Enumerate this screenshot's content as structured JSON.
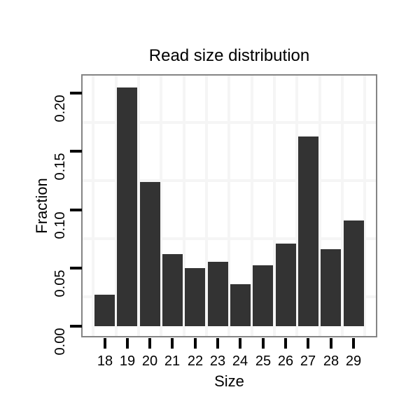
{
  "chart_data": {
    "type": "bar",
    "title": "Read size distribution",
    "xlabel": "Size",
    "ylabel": "Fraction",
    "categories": [
      "18",
      "19",
      "20",
      "21",
      "22",
      "23",
      "24",
      "25",
      "26",
      "27",
      "28",
      "29"
    ],
    "values": [
      0.027,
      0.205,
      0.124,
      0.062,
      0.05,
      0.055,
      0.036,
      0.052,
      0.071,
      0.163,
      0.066,
      0.091
    ],
    "y_tick_labels": [
      "0.00",
      "0.05",
      "0.10",
      "0.15",
      "0.20"
    ],
    "y_tick_values": [
      0.0,
      0.05,
      0.1,
      0.15,
      0.2
    ],
    "ylim": [
      0,
      0.215
    ],
    "grid": "minor gridlines between y ticks and between category slots",
    "y_minor_grid_values": [
      0.025,
      0.075,
      0.125,
      0.175
    ],
    "legend": "none",
    "colors": {
      "bar": "#333333",
      "gridline": "#f5f5f5",
      "panel_border": "#848484",
      "tick": "#000000",
      "text": "#000000",
      "background": "#ffffff"
    }
  }
}
